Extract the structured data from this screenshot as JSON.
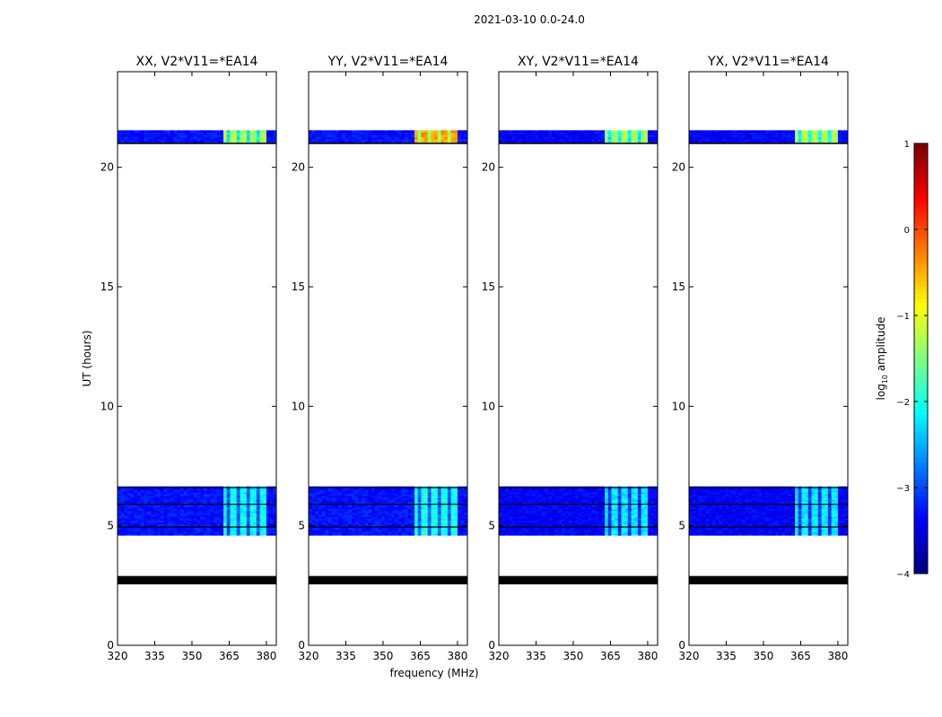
{
  "suptitle": "2021-03-10 0.0-24.0",
  "chart_data": {
    "type": "heatmap",
    "xlabel": "frequency (MHz)",
    "ylabel": "UT (hours)",
    "xlim": [
      320,
      384
    ],
    "ylim": [
      0,
      24
    ],
    "xticks": [
      320,
      335,
      350,
      365,
      380
    ],
    "yticks": [
      0,
      5,
      10,
      15,
      20
    ],
    "colorbar": {
      "label_main": "log",
      "label_sub": "10",
      "label_tail": " amplitude",
      "range": [
        -4,
        1
      ],
      "ticks": [
        -4,
        -3,
        -2,
        -1,
        0,
        1
      ],
      "colormap": "jet"
    },
    "flagged_rows_ut": [
      [
        2.55,
        2.9
      ]
    ],
    "gap_lines_ut": [
      4.95,
      5.9,
      6.6
    ],
    "blocks": [
      {
        "ut_start": 4.6,
        "ut_end": 6.65,
        "rfi_freq_start": 362,
        "rfi_freq_end": 380
      },
      {
        "ut_start": 21.0,
        "ut_end": 21.55,
        "rfi_freq_start": 362,
        "rfi_freq_end": 380
      }
    ],
    "panels": [
      {
        "title": "XX, V2*V11=*EA14",
        "base_log_amp": -3.3,
        "rfi_log_amp_late": -1.3,
        "rfi_log_amp_early": -2.1
      },
      {
        "title": "YY, V2*V11=*EA14",
        "base_log_amp": -3.3,
        "rfi_log_amp_late": -0.4,
        "rfi_log_amp_early": -2.0
      },
      {
        "title": "XY, V2*V11=*EA14",
        "base_log_amp": -3.4,
        "rfi_log_amp_late": -1.3,
        "rfi_log_amp_early": -2.2
      },
      {
        "title": "YX, V2*V11=*EA14",
        "base_log_amp": -3.4,
        "rfi_log_amp_late": -1.2,
        "rfi_log_amp_early": -2.2
      }
    ]
  }
}
